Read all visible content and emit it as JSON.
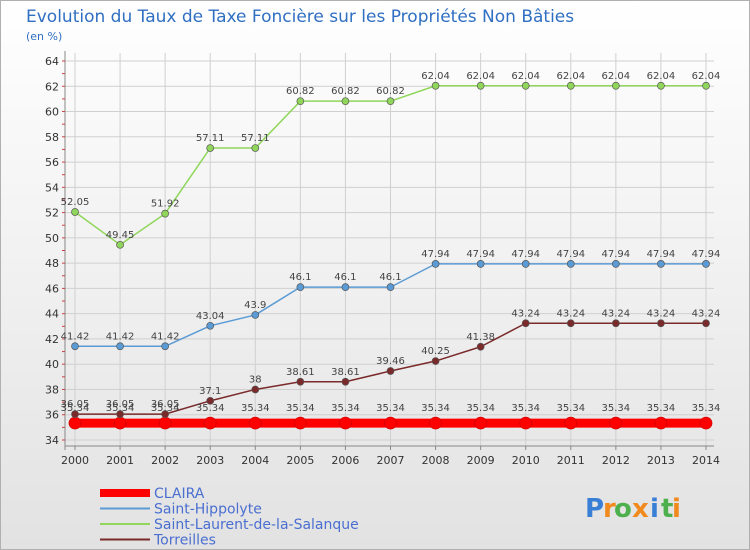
{
  "chart_data": {
    "type": "line",
    "title": "Evolution du Taux de Taxe Foncière sur les Propriétés Non Bâties",
    "ylabel": "(en %)",
    "xlabel": "",
    "categories": [
      "2000",
      "2001",
      "2002",
      "2003",
      "2004",
      "2005",
      "2006",
      "2007",
      "2008",
      "2009",
      "2010",
      "2011",
      "2012",
      "2013",
      "2014"
    ],
    "ylim": [
      34,
      64
    ],
    "yticks": [
      34,
      36,
      38,
      40,
      42,
      44,
      46,
      48,
      50,
      52,
      54,
      56,
      58,
      60,
      62,
      64
    ],
    "grid": true,
    "legend_position": "bottom-left",
    "series": [
      {
        "name": "CLAIRA",
        "color": "#ff0000",
        "values": [
          35.34,
          35.34,
          35.34,
          35.34,
          35.34,
          35.34,
          35.34,
          35.34,
          35.34,
          35.34,
          35.34,
          35.34,
          35.34,
          35.34,
          35.34
        ],
        "labels": [
          "35.34",
          "35.34",
          "35.34",
          "35.34",
          "35.34",
          "35.34",
          "35.34",
          "35.34",
          "35.34",
          "35.34",
          "35.34",
          "35.34",
          "35.34",
          "35.34",
          "35.34"
        ]
      },
      {
        "name": "Saint-Hippolyte",
        "color": "#5b9bd5",
        "values": [
          41.42,
          41.42,
          41.42,
          43.04,
          43.9,
          46.1,
          46.1,
          46.1,
          47.94,
          47.94,
          47.94,
          47.94,
          47.94,
          47.94,
          47.94
        ],
        "labels": [
          "41.42",
          "41.42",
          "41.42",
          "43.04",
          "43.9",
          "46.1",
          "46.1",
          "46.1",
          "47.94",
          "47.94",
          "47.94",
          "47.94",
          "47.94",
          "47.94",
          "47.94"
        ]
      },
      {
        "name": "Saint-Laurent-de-la-Salanque",
        "color": "#8fd65a",
        "values": [
          52.05,
          49.45,
          51.92,
          57.11,
          57.11,
          60.82,
          60.82,
          60.82,
          62.04,
          62.04,
          62.04,
          62.04,
          62.04,
          62.04,
          62.04
        ],
        "labels": [
          "52.05",
          "49.45",
          "51.92",
          "57.11",
          "57.11",
          "60.82",
          "60.82",
          "60.82",
          "62.04",
          "62.04",
          "62.04",
          "62.04",
          "62.04",
          "62.04",
          "62.04"
        ]
      },
      {
        "name": "Torreilles",
        "color": "#7a2a2a",
        "values": [
          36.05,
          36.05,
          36.05,
          37.1,
          38,
          38.61,
          38.61,
          39.46,
          40.25,
          41.38,
          43.24,
          43.24,
          43.24,
          43.24,
          43.24
        ],
        "labels": [
          "36.05",
          "36.05",
          "36.05",
          "37.1",
          "38",
          "38.61",
          "38.61",
          "39.46",
          "40.25",
          "41.38",
          "43.24",
          "43.24",
          "43.24",
          "43.24",
          "43.24"
        ]
      }
    ]
  },
  "logo": {
    "letters": [
      "P",
      "r",
      "o",
      "x",
      "i",
      "t",
      "i"
    ],
    "colors": [
      "#3a7fd6",
      "#f08a1c",
      "#4db04d",
      "#f08a1c",
      "#3a7fd6",
      "#4db04d",
      "#f08a1c"
    ]
  }
}
